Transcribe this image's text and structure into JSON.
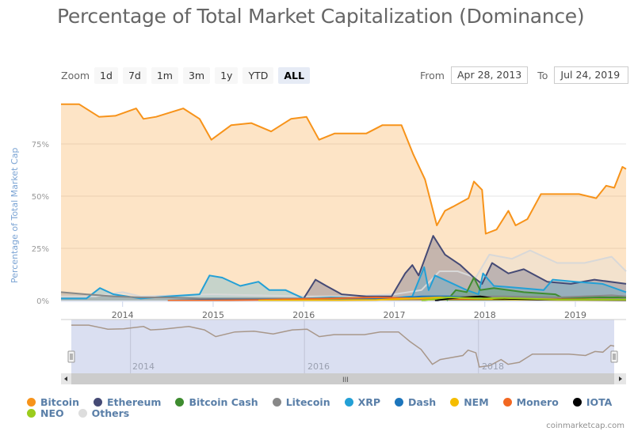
{
  "title": "Percentage of Total Market Capitalization (Dominance)",
  "zoom": {
    "label": "Zoom",
    "buttons": [
      "1d",
      "7d",
      "1m",
      "3m",
      "1y",
      "YTD",
      "ALL"
    ],
    "active": "ALL"
  },
  "range": {
    "from_label": "From",
    "from_value": "Apr 28, 2013",
    "to_label": "To",
    "to_value": "Jul 24, 2019"
  },
  "credit": "coinmarketcap.com",
  "navigator": {
    "tick_labels": [
      "2014",
      "2016",
      "2018"
    ],
    "scrollbar_grip": "III"
  },
  "colors": {
    "Bitcoin": "#f7931a",
    "Ethereum": "#454a75",
    "Bitcoin Cash": "#3e8c2f",
    "Litecoin": "#888888",
    "XRP": "#23a0d6",
    "Dash": "#1c75bc",
    "NEM": "#f5bd00",
    "Monero": "#f26822",
    "IOTA": "#000000",
    "NEO": "#9bcc1d",
    "Others": "#dddddd"
  },
  "chart_data": {
    "type": "area",
    "title": "Percentage of Total Market Capitalization (Dominance)",
    "xlabel": "",
    "ylabel": "Percentage of Total Market Cap",
    "xlim": [
      2013.32,
      2019.56
    ],
    "ylim": [
      0,
      100
    ],
    "x_ticks": [
      "2014",
      "2015",
      "2016",
      "2017",
      "2018",
      "2019"
    ],
    "y_ticks": [
      "0%",
      "25%",
      "50%",
      "75%"
    ],
    "grid": true,
    "legend_position": "bottom",
    "series": [
      {
        "name": "Bitcoin",
        "points": [
          [
            2013.32,
            94
          ],
          [
            2013.52,
            94
          ],
          [
            2013.74,
            88
          ],
          [
            2013.92,
            88.5
          ],
          [
            2014.15,
            92
          ],
          [
            2014.23,
            87
          ],
          [
            2014.37,
            88
          ],
          [
            2014.67,
            92
          ],
          [
            2014.85,
            87
          ],
          [
            2014.98,
            77
          ],
          [
            2015.2,
            84
          ],
          [
            2015.42,
            85
          ],
          [
            2015.64,
            81
          ],
          [
            2015.86,
            87
          ],
          [
            2016.03,
            88
          ],
          [
            2016.17,
            77
          ],
          [
            2016.34,
            80
          ],
          [
            2016.52,
            80
          ],
          [
            2016.69,
            80
          ],
          [
            2016.87,
            84
          ],
          [
            2017.08,
            84
          ],
          [
            2017.21,
            70
          ],
          [
            2017.34,
            58
          ],
          [
            2017.47,
            36
          ],
          [
            2017.56,
            43
          ],
          [
            2017.65,
            45
          ],
          [
            2017.82,
            49
          ],
          [
            2017.88,
            57
          ],
          [
            2017.97,
            53
          ],
          [
            2018.01,
            32
          ],
          [
            2018.13,
            34
          ],
          [
            2018.26,
            43
          ],
          [
            2018.34,
            36
          ],
          [
            2018.47,
            39
          ],
          [
            2018.62,
            51
          ],
          [
            2018.78,
            51
          ],
          [
            2019.04,
            51
          ],
          [
            2019.23,
            49
          ],
          [
            2019.34,
            55
          ],
          [
            2019.43,
            54
          ],
          [
            2019.52,
            64
          ],
          [
            2019.56,
            63
          ]
        ]
      },
      {
        "name": "Ethereum",
        "points": [
          [
            2015.6,
            0
          ],
          [
            2016.0,
            1
          ],
          [
            2016.13,
            10
          ],
          [
            2016.25,
            7
          ],
          [
            2016.42,
            3
          ],
          [
            2016.69,
            2
          ],
          [
            2016.97,
            2
          ],
          [
            2017.12,
            13
          ],
          [
            2017.2,
            17
          ],
          [
            2017.27,
            12
          ],
          [
            2017.43,
            31
          ],
          [
            2017.56,
            22
          ],
          [
            2017.73,
            17
          ],
          [
            2017.88,
            11
          ],
          [
            2017.97,
            8
          ],
          [
            2018.08,
            18
          ],
          [
            2018.26,
            13
          ],
          [
            2018.43,
            15
          ],
          [
            2018.69,
            9
          ],
          [
            2018.95,
            8
          ],
          [
            2019.21,
            10
          ],
          [
            2019.56,
            8
          ]
        ]
      },
      {
        "name": "Bitcoin Cash",
        "points": [
          [
            2017.58,
            0
          ],
          [
            2017.68,
            5
          ],
          [
            2017.8,
            4
          ],
          [
            2017.88,
            11
          ],
          [
            2017.95,
            5
          ],
          [
            2018.1,
            6
          ],
          [
            2018.43,
            4
          ],
          [
            2018.78,
            3
          ],
          [
            2018.87,
            1
          ],
          [
            2019.2,
            1.5
          ],
          [
            2019.56,
            1.5
          ]
        ]
      },
      {
        "name": "Litecoin",
        "points": [
          [
            2013.32,
            4
          ],
          [
            2013.6,
            3
          ],
          [
            2013.9,
            2
          ],
          [
            2014.2,
            1.5
          ],
          [
            2014.5,
            1.5
          ],
          [
            2014.9,
            1
          ],
          [
            2015.5,
            1
          ],
          [
            2016.0,
            1
          ],
          [
            2016.5,
            0.8
          ],
          [
            2017.0,
            1
          ],
          [
            2017.4,
            2
          ],
          [
            2017.8,
            2
          ],
          [
            2018.2,
            2
          ],
          [
            2018.8,
            1.5
          ],
          [
            2019.4,
            2.5
          ],
          [
            2019.56,
            2
          ]
        ]
      },
      {
        "name": "XRP",
        "points": [
          [
            2013.32,
            1
          ],
          [
            2013.6,
            1
          ],
          [
            2013.75,
            6
          ],
          [
            2013.9,
            3
          ],
          [
            2014.2,
            1
          ],
          [
            2014.5,
            2
          ],
          [
            2014.85,
            3
          ],
          [
            2014.96,
            12
          ],
          [
            2015.1,
            11
          ],
          [
            2015.3,
            7
          ],
          [
            2015.5,
            9
          ],
          [
            2015.62,
            5
          ],
          [
            2015.8,
            5
          ],
          [
            2016.0,
            1
          ],
          [
            2016.3,
            1.5
          ],
          [
            2016.9,
            1
          ],
          [
            2017.2,
            2
          ],
          [
            2017.33,
            16
          ],
          [
            2017.38,
            5
          ],
          [
            2017.45,
            12
          ],
          [
            2017.6,
            9
          ],
          [
            2017.8,
            5
          ],
          [
            2017.93,
            3
          ],
          [
            2017.98,
            13
          ],
          [
            2018.1,
            7
          ],
          [
            2018.4,
            6
          ],
          [
            2018.65,
            5
          ],
          [
            2018.75,
            10
          ],
          [
            2019.0,
            9
          ],
          [
            2019.3,
            8
          ],
          [
            2019.56,
            4
          ]
        ]
      },
      {
        "name": "Dash",
        "points": [
          [
            2014.5,
            0
          ],
          [
            2015.0,
            0.5
          ],
          [
            2016.0,
            0.5
          ],
          [
            2016.5,
            1
          ],
          [
            2017.0,
            1
          ],
          [
            2017.3,
            2
          ],
          [
            2017.6,
            2
          ],
          [
            2018.0,
            1
          ],
          [
            2018.5,
            0.6
          ],
          [
            2019.0,
            0.6
          ],
          [
            2019.56,
            0.5
          ]
        ]
      },
      {
        "name": "NEM",
        "points": [
          [
            2015.5,
            0
          ],
          [
            2016.8,
            0.3
          ],
          [
            2017.2,
            1
          ],
          [
            2017.5,
            1.5
          ],
          [
            2017.9,
            1
          ],
          [
            2018.3,
            0.6
          ],
          [
            2018.8,
            0.3
          ],
          [
            2019.56,
            0.2
          ]
        ]
      },
      {
        "name": "Monero",
        "points": [
          [
            2014.5,
            0
          ],
          [
            2015.5,
            0.3
          ],
          [
            2016.8,
            1.5
          ],
          [
            2017.3,
            1
          ],
          [
            2017.8,
            0.8
          ],
          [
            2018.3,
            0.8
          ],
          [
            2019.0,
            0.6
          ],
          [
            2019.56,
            0.5
          ]
        ]
      },
      {
        "name": "IOTA",
        "points": [
          [
            2017.45,
            0
          ],
          [
            2017.6,
            1
          ],
          [
            2017.95,
            2
          ],
          [
            2018.1,
            1
          ],
          [
            2018.6,
            0.5
          ],
          [
            2019.56,
            0.3
          ]
        ]
      },
      {
        "name": "NEO",
        "points": [
          [
            2017.3,
            0
          ],
          [
            2017.6,
            1.5
          ],
          [
            2017.95,
            1
          ],
          [
            2018.2,
            1.2
          ],
          [
            2018.8,
            0.5
          ],
          [
            2019.56,
            0.4
          ]
        ]
      },
      {
        "name": "Others",
        "points": [
          [
            2013.32,
            2
          ],
          [
            2013.7,
            2
          ],
          [
            2014.0,
            4
          ],
          [
            2014.2,
            2
          ],
          [
            2014.6,
            2.5
          ],
          [
            2015.0,
            3
          ],
          [
            2015.5,
            2.5
          ],
          [
            2016.0,
            2
          ],
          [
            2016.5,
            2
          ],
          [
            2017.0,
            3
          ],
          [
            2017.3,
            5
          ],
          [
            2017.5,
            14
          ],
          [
            2017.7,
            14
          ],
          [
            2017.9,
            11
          ],
          [
            2018.05,
            22
          ],
          [
            2018.3,
            20
          ],
          [
            2018.5,
            24
          ],
          [
            2018.8,
            18
          ],
          [
            2019.1,
            18
          ],
          [
            2019.4,
            21
          ],
          [
            2019.56,
            14
          ]
        ]
      }
    ]
  }
}
